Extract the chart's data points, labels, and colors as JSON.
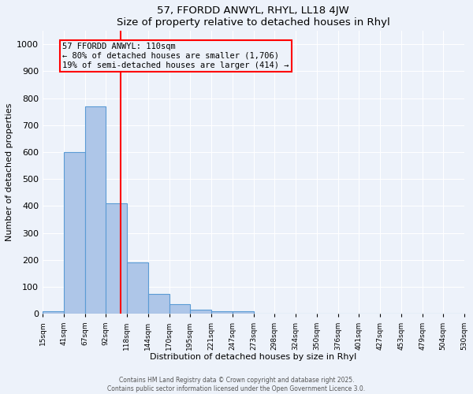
{
  "title1": "57, FFORDD ANWYL, RHYL, LL18 4JW",
  "title2": "Size of property relative to detached houses in Rhyl",
  "xlabel": "Distribution of detached houses by size in Rhyl",
  "ylabel": "Number of detached properties",
  "bin_edges": [
    15,
    41,
    67,
    92,
    118,
    144,
    170,
    195,
    221,
    247,
    273,
    298,
    324,
    350,
    376,
    401,
    427,
    453,
    479,
    504,
    530
  ],
  "bar_heights": [
    10,
    600,
    770,
    410,
    190,
    75,
    35,
    15,
    10,
    10,
    0,
    0,
    0,
    0,
    0,
    0,
    0,
    0,
    0,
    0
  ],
  "bar_color": "#aec6e8",
  "bar_edge_color": "#5b9bd5",
  "vline_x": 110,
  "vline_color": "red",
  "annotation_text": "57 FFORDD ANWYL: 110sqm\n← 80% of detached houses are smaller (1,706)\n19% of semi-detached houses are larger (414) →",
  "annotation_box_color": "red",
  "annotation_text_color": "black",
  "ylim": [
    0,
    1050
  ],
  "yticks": [
    0,
    100,
    200,
    300,
    400,
    500,
    600,
    700,
    800,
    900,
    1000
  ],
  "background_color": "#edf2fa",
  "grid_color": "white",
  "footer1": "Contains HM Land Registry data © Crown copyright and database right 2025.",
  "footer2": "Contains public sector information licensed under the Open Government Licence 3.0."
}
